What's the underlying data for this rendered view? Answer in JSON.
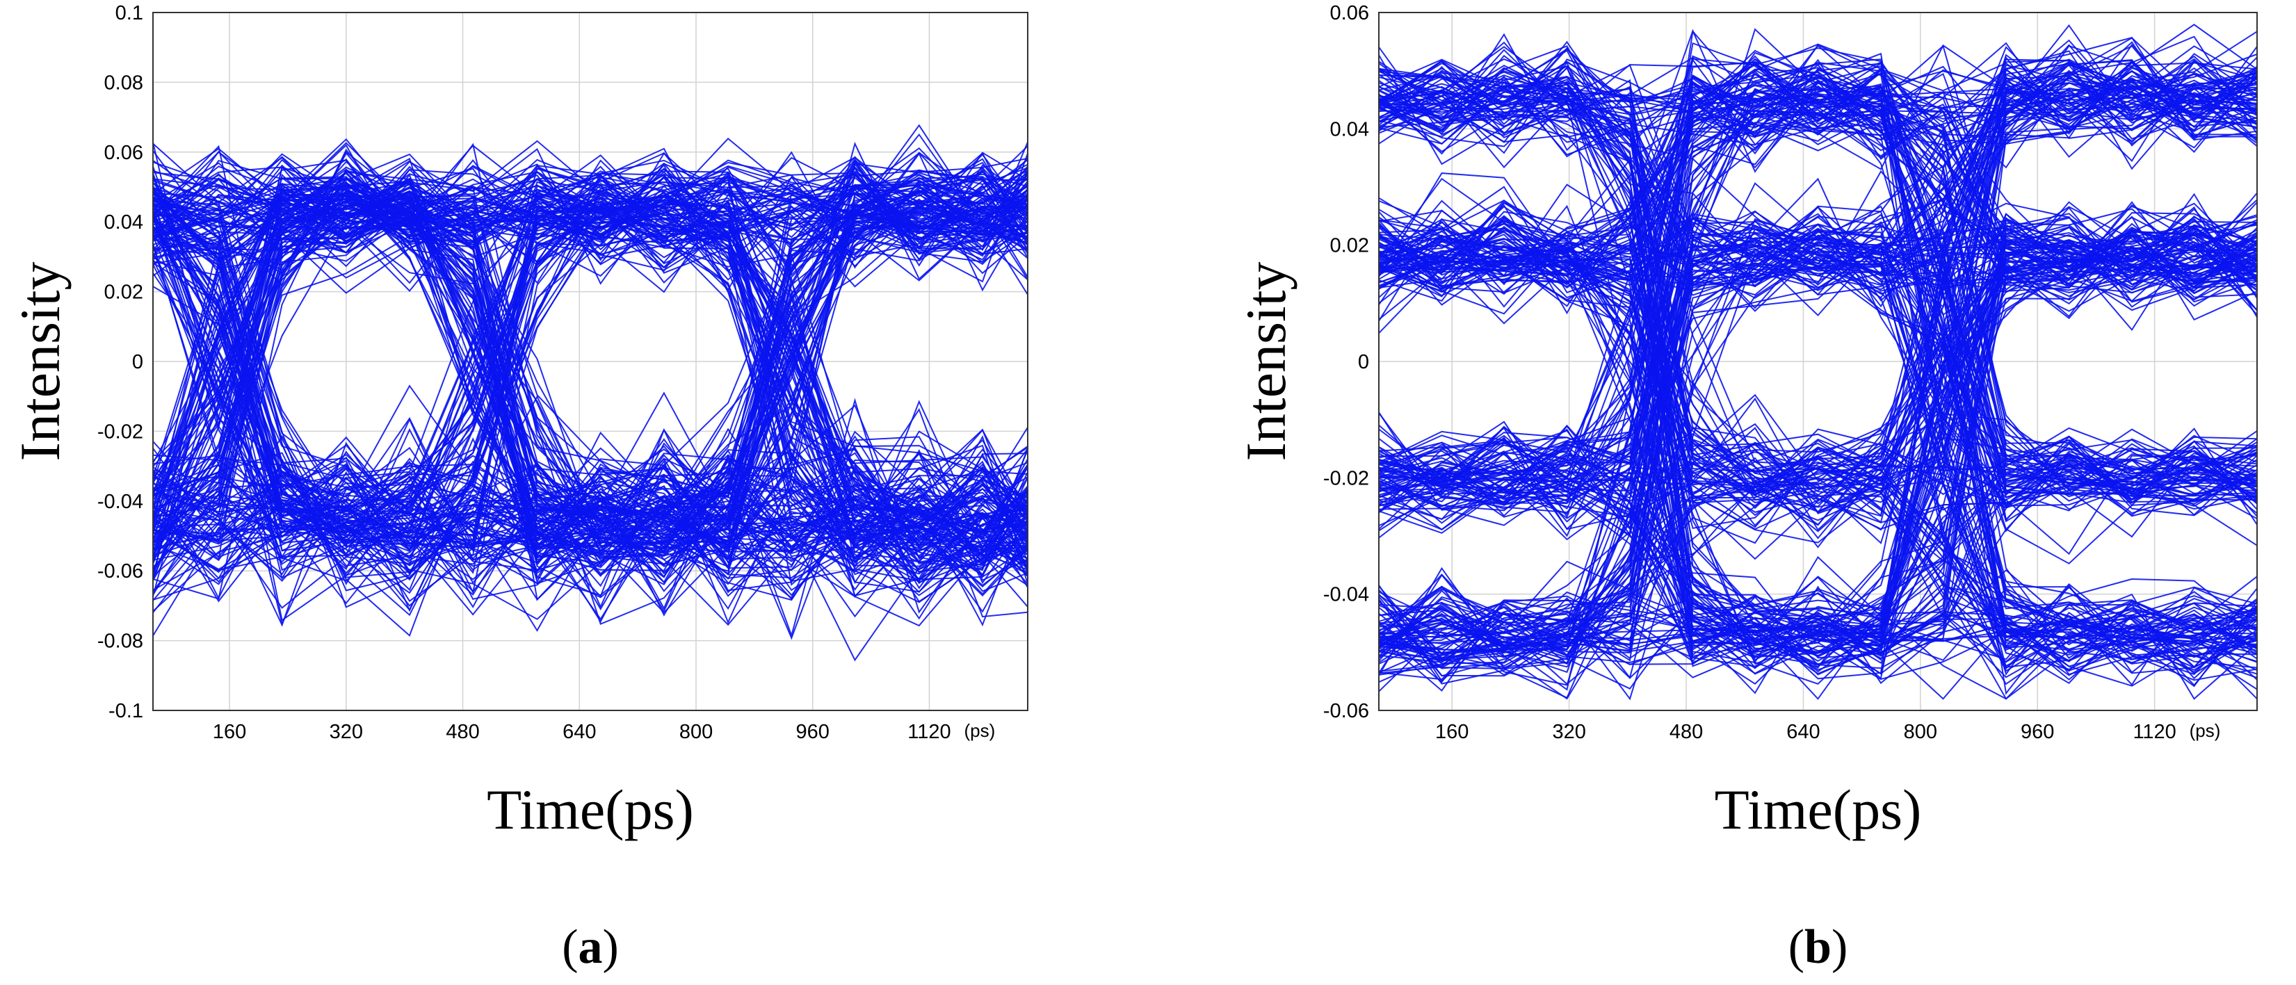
{
  "colors": {
    "trace": "#0a14f0",
    "grid": "#d2d2d2",
    "frame": "#333333"
  },
  "chart_data": [
    {
      "type": "line",
      "subtype": "eye-diagram",
      "caption_label": "a",
      "xlabel": "Time(ps)",
      "ylabel": "Intensity",
      "x_unit_label": "(ps)",
      "xlim": [
        55,
        1255
      ],
      "ylim": [
        -0.1,
        0.1
      ],
      "x_ticks": [
        160,
        320,
        480,
        640,
        800,
        960,
        1120
      ],
      "y_ticks": [
        0.1,
        0.08,
        0.06,
        0.04,
        0.02,
        0,
        -0.02,
        -0.04,
        -0.06,
        -0.08,
        -0.1
      ],
      "y_tick_labels": [
        "0.1",
        "0.08",
        "0.06",
        "0.04",
        "0.02",
        "0",
        "-0.02",
        "-0.04",
        "-0.06",
        "-0.08",
        "-0.1"
      ],
      "grid": true,
      "eye": {
        "sample_x": [
          55,
          145,
          232,
          320,
          407,
          494,
          582,
          669,
          756,
          844,
          931,
          1018,
          1106,
          1193,
          1255
        ],
        "high_level": 0.043,
        "low_level": -0.046,
        "high_spread": 0.015,
        "low_spread": 0.02,
        "crossings_x": [
          160,
          522,
          920
        ],
        "transition_width": 170,
        "trace_count": 260
      }
    },
    {
      "type": "line",
      "subtype": "eye-diagram",
      "caption_label": "b",
      "xlabel": "Time(ps)",
      "ylabel": "Intensity",
      "x_unit_label": "(ps)",
      "xlim": [
        60,
        1260
      ],
      "ylim": [
        -0.06,
        0.06
      ],
      "x_ticks": [
        160,
        320,
        480,
        640,
        800,
        960,
        1120
      ],
      "y_ticks": [
        0.06,
        0.04,
        0.02,
        0,
        -0.02,
        -0.04,
        -0.06
      ],
      "y_tick_labels": [
        "0.06",
        "0.04",
        "0.02",
        "0",
        "-0.02",
        "-0.04",
        "-0.06"
      ],
      "grid": true,
      "eye": {
        "sample_x": [
          60,
          146,
          231,
          317,
          403,
          489,
          574,
          660,
          746,
          831,
          917,
          1003,
          1089,
          1174,
          1260
        ],
        "levels": [
          0.045,
          0.018,
          -0.02,
          -0.047
        ],
        "level_spread": 0.008,
        "crossings_x": [
          440,
          840
        ],
        "transition_width": 140,
        "trace_count": 320
      }
    }
  ]
}
